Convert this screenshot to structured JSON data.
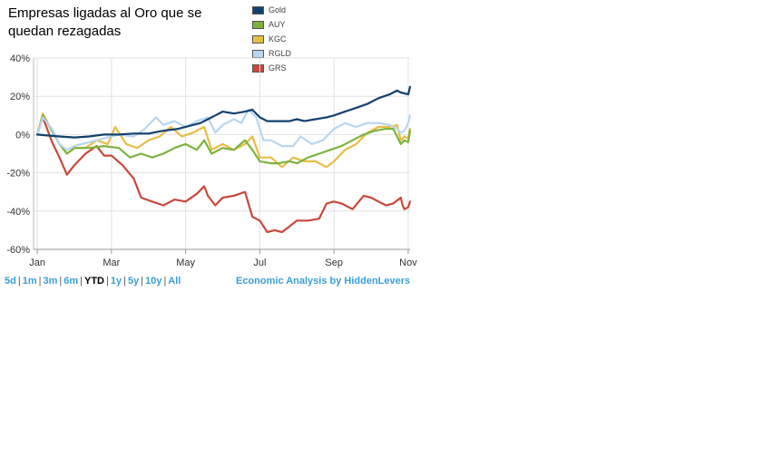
{
  "chart_data": {
    "type": "line",
    "title": "Empresas ligadas al Oro que se quedan rezagadas",
    "xlabel": "",
    "ylabel": "",
    "x_tick_labels": [
      "Jan",
      "Mar",
      "May",
      "Jul",
      "Sep",
      "Nov"
    ],
    "x_ticks_months": [
      0,
      2,
      4,
      6,
      8,
      10
    ],
    "xlim_months": [
      -0.1,
      10.05
    ],
    "y_tick_labels": [
      "40%",
      "20%",
      "0%",
      "-20%",
      "-40%",
      "-60%"
    ],
    "y_ticks": [
      40,
      20,
      0,
      -20,
      -40,
      -60
    ],
    "ylim": [
      -60,
      40
    ],
    "grid": true,
    "legend_position": "top-right",
    "series": [
      {
        "name": "Gold",
        "color": "#12416e",
        "points": [
          [
            0,
            0
          ],
          [
            0.3,
            -0.5
          ],
          [
            0.6,
            -1
          ],
          [
            1,
            -1.5
          ],
          [
            1.4,
            -1
          ],
          [
            1.8,
            0
          ],
          [
            2.2,
            0
          ],
          [
            2.6,
            0.5
          ],
          [
            3,
            0.5
          ],
          [
            3.4,
            2
          ],
          [
            3.8,
            3
          ],
          [
            4.2,
            5
          ],
          [
            4.4,
            6
          ],
          [
            4.6,
            8
          ],
          [
            4.8,
            10
          ],
          [
            5,
            12
          ],
          [
            5.3,
            11
          ],
          [
            5.6,
            12
          ],
          [
            5.8,
            13
          ],
          [
            6,
            9
          ],
          [
            6.2,
            7
          ],
          [
            6.5,
            7
          ],
          [
            6.8,
            7
          ],
          [
            7,
            8
          ],
          [
            7.2,
            7
          ],
          [
            7.5,
            8
          ],
          [
            7.8,
            9
          ],
          [
            8,
            10
          ],
          [
            8.3,
            12
          ],
          [
            8.6,
            14
          ],
          [
            8.9,
            16
          ],
          [
            9.2,
            19
          ],
          [
            9.5,
            21
          ],
          [
            9.7,
            23
          ],
          [
            9.8,
            22
          ],
          [
            10,
            21
          ],
          [
            10.05,
            25
          ]
        ]
      },
      {
        "name": "AUY",
        "color": "#7db33d",
        "points": [
          [
            0,
            0
          ],
          [
            0.15,
            10
          ],
          [
            0.4,
            2
          ],
          [
            0.6,
            -5
          ],
          [
            0.8,
            -10
          ],
          [
            1,
            -7
          ],
          [
            1.4,
            -7
          ],
          [
            1.8,
            -6
          ],
          [
            2.2,
            -7
          ],
          [
            2.5,
            -12
          ],
          [
            2.8,
            -10
          ],
          [
            3.1,
            -12
          ],
          [
            3.4,
            -10
          ],
          [
            3.7,
            -7
          ],
          [
            4,
            -5
          ],
          [
            4.3,
            -8
          ],
          [
            4.5,
            -3
          ],
          [
            4.7,
            -10
          ],
          [
            5,
            -7
          ],
          [
            5.3,
            -8
          ],
          [
            5.6,
            -3
          ],
          [
            5.8,
            -8
          ],
          [
            6,
            -14
          ],
          [
            6.3,
            -15
          ],
          [
            6.5,
            -15
          ],
          [
            6.8,
            -14
          ],
          [
            7,
            -15
          ],
          [
            7.3,
            -12
          ],
          [
            7.6,
            -10
          ],
          [
            7.9,
            -8
          ],
          [
            8.2,
            -6
          ],
          [
            8.5,
            -3
          ],
          [
            8.8,
            0
          ],
          [
            9.1,
            2
          ],
          [
            9.4,
            3
          ],
          [
            9.6,
            3
          ],
          [
            9.8,
            -5
          ],
          [
            9.9,
            -3
          ],
          [
            10,
            -4
          ],
          [
            10.05,
            2
          ]
        ]
      },
      {
        "name": "KGC",
        "color": "#e8bd47",
        "points": [
          [
            0,
            0
          ],
          [
            0.15,
            11
          ],
          [
            0.4,
            2
          ],
          [
            0.6,
            -5
          ],
          [
            0.8,
            -10
          ],
          [
            1,
            -7
          ],
          [
            1.3,
            -7
          ],
          [
            1.6,
            -3
          ],
          [
            1.9,
            -5
          ],
          [
            2.1,
            4
          ],
          [
            2.4,
            -5
          ],
          [
            2.7,
            -7
          ],
          [
            3,
            -3
          ],
          [
            3.3,
            -1
          ],
          [
            3.6,
            4
          ],
          [
            3.9,
            -1
          ],
          [
            4.2,
            1
          ],
          [
            4.5,
            4
          ],
          [
            4.7,
            -8
          ],
          [
            5,
            -5
          ],
          [
            5.3,
            -8
          ],
          [
            5.6,
            -5
          ],
          [
            5.8,
            -1
          ],
          [
            6,
            -12
          ],
          [
            6.3,
            -12
          ],
          [
            6.6,
            -17
          ],
          [
            6.9,
            -12
          ],
          [
            7.2,
            -14
          ],
          [
            7.5,
            -14
          ],
          [
            7.8,
            -17
          ],
          [
            8,
            -14
          ],
          [
            8.3,
            -8
          ],
          [
            8.6,
            -5
          ],
          [
            8.9,
            1
          ],
          [
            9.2,
            4
          ],
          [
            9.5,
            4
          ],
          [
            9.7,
            5
          ],
          [
            9.8,
            -3
          ],
          [
            9.9,
            -1
          ],
          [
            10,
            -2
          ],
          [
            10.05,
            3
          ]
        ]
      },
      {
        "name": "RGLD",
        "color": "#b8d6f0",
        "points": [
          [
            0,
            0
          ],
          [
            0.15,
            9
          ],
          [
            0.4,
            3
          ],
          [
            0.6,
            -5
          ],
          [
            0.8,
            -8
          ],
          [
            1,
            -6
          ],
          [
            1.4,
            -4
          ],
          [
            1.8,
            -2
          ],
          [
            2.2,
            0
          ],
          [
            2.6,
            -1
          ],
          [
            2.9,
            3
          ],
          [
            3.2,
            9
          ],
          [
            3.4,
            5
          ],
          [
            3.7,
            7
          ],
          [
            4,
            4
          ],
          [
            4.3,
            7
          ],
          [
            4.6,
            9
          ],
          [
            4.8,
            1
          ],
          [
            5,
            5
          ],
          [
            5.3,
            8
          ],
          [
            5.5,
            6
          ],
          [
            5.7,
            13
          ],
          [
            5.9,
            9
          ],
          [
            6.1,
            -3
          ],
          [
            6.3,
            -3
          ],
          [
            6.6,
            -6
          ],
          [
            6.9,
            -6
          ],
          [
            7.1,
            -1
          ],
          [
            7.4,
            -5
          ],
          [
            7.7,
            -3
          ],
          [
            8,
            3
          ],
          [
            8.3,
            6
          ],
          [
            8.6,
            4
          ],
          [
            8.9,
            6
          ],
          [
            9.2,
            6
          ],
          [
            9.5,
            5
          ],
          [
            9.7,
            3
          ],
          [
            9.8,
            1
          ],
          [
            9.9,
            2
          ],
          [
            10,
            6
          ],
          [
            10.05,
            10
          ]
        ]
      },
      {
        "name": "GRS",
        "color": "#c8483c",
        "points": [
          [
            0,
            0
          ],
          [
            0.15,
            9
          ],
          [
            0.4,
            -4
          ],
          [
            0.6,
            -12
          ],
          [
            0.8,
            -21
          ],
          [
            1,
            -16
          ],
          [
            1.3,
            -10
          ],
          [
            1.6,
            -6
          ],
          [
            1.8,
            -11
          ],
          [
            2,
            -11
          ],
          [
            2.3,
            -16
          ],
          [
            2.6,
            -23
          ],
          [
            2.8,
            -33
          ],
          [
            3.1,
            -35
          ],
          [
            3.4,
            -37
          ],
          [
            3.7,
            -34
          ],
          [
            4,
            -35
          ],
          [
            4.3,
            -31
          ],
          [
            4.5,
            -27
          ],
          [
            4.6,
            -32
          ],
          [
            4.8,
            -37
          ],
          [
            5,
            -33
          ],
          [
            5.3,
            -32
          ],
          [
            5.6,
            -30
          ],
          [
            5.8,
            -43
          ],
          [
            6,
            -45
          ],
          [
            6.2,
            -51
          ],
          [
            6.4,
            -50
          ],
          [
            6.6,
            -51
          ],
          [
            6.8,
            -48
          ],
          [
            7,
            -45
          ],
          [
            7.3,
            -45
          ],
          [
            7.6,
            -44
          ],
          [
            7.8,
            -36
          ],
          [
            8,
            -35
          ],
          [
            8.2,
            -36
          ],
          [
            8.5,
            -39
          ],
          [
            8.8,
            -32
          ],
          [
            9,
            -33
          ],
          [
            9.2,
            -35
          ],
          [
            9.4,
            -37
          ],
          [
            9.6,
            -36
          ],
          [
            9.8,
            -33
          ],
          [
            9.85,
            -37
          ],
          [
            9.9,
            -39
          ],
          [
            10,
            -38
          ],
          [
            10.05,
            -35
          ]
        ]
      }
    ]
  },
  "range_selector": [
    "5d",
    "1m",
    "3m",
    "6m",
    "YTD",
    "1y",
    "5y",
    "10y",
    "All"
  ],
  "active_range": "YTD",
  "range_separator": "|",
  "credit": "Economic Analysis by HiddenLevers"
}
